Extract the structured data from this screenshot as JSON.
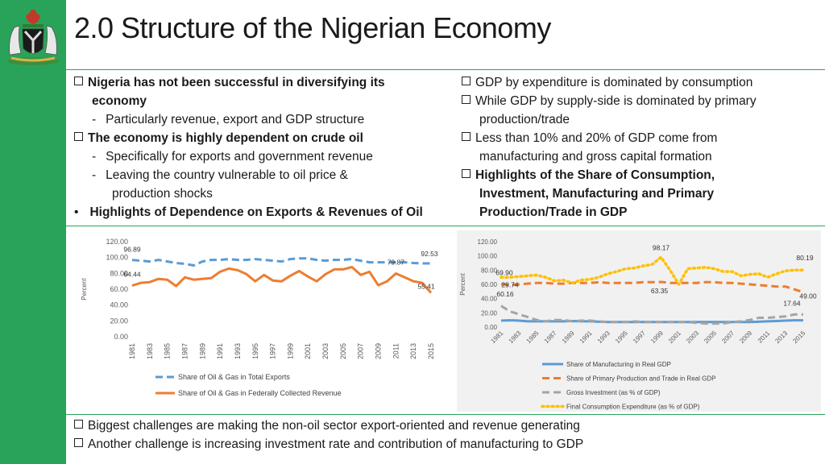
{
  "title": "2.0  Structure of the Nigerian Economy",
  "left_bullets": [
    {
      "marker": "box",
      "text": "Nigeria has not been successful in diversifying its",
      "bold": true
    },
    {
      "marker": "none",
      "text": "economy",
      "bold": true
    },
    {
      "marker": "-",
      "text": "Particularly revenue, export and GDP structure",
      "bold": false
    },
    {
      "marker": "box",
      "text": "The economy is highly dependent on crude oil",
      "bold": true
    },
    {
      "marker": "-",
      "text": "Specifically for exports and government revenue",
      "bold": false
    },
    {
      "marker": "-",
      "text": "Leaving the country vulnerable to oil price &",
      "bold": false
    },
    {
      "marker": "none",
      "text": "production shocks",
      "bold": false
    },
    {
      "marker": "•",
      "text": "Highlights of Dependence on Exports & Revenues of Oil",
      "bold": true
    }
  ],
  "right_bullets": [
    {
      "marker": "box",
      "text": "GDP by expenditure is dominated by consumption",
      "bold": false
    },
    {
      "marker": "box",
      "text": "While GDP by supply-side is dominated by primary",
      "bold": false
    },
    {
      "marker": "none",
      "text": "production/trade",
      "bold": false
    },
    {
      "marker": "box",
      "text": "Less than 10% and 20% of GDP come from",
      "bold": false
    },
    {
      "marker": "none",
      "text": "manufacturing and gross capital formation",
      "bold": false
    },
    {
      "marker": "box",
      "text": "Highlights of the Share of Consumption,",
      "bold": true
    },
    {
      "marker": "none",
      "text": "Investment, Manufacturing and Primary",
      "bold": true
    },
    {
      "marker": "none",
      "text": "Production/Trade in GDP",
      "bold": true
    }
  ],
  "bottom_bullets": [
    "Biggest challenges are making the non-oil sector export-oriented and revenue generating",
    "Another challenge is increasing investment rate and contribution of manufacturing to GDP"
  ],
  "colors": {
    "green": "#29a35a",
    "blue": "#5b9bd5",
    "orange": "#ed7d31",
    "gray": "#a5a5a5",
    "yellow": "#ffc000"
  },
  "chart_data": [
    {
      "type": "line",
      "ylabel": "Percent",
      "ylim": [
        0,
        120
      ],
      "yticks": [
        "0.00",
        "20.00",
        "40.00",
        "60.00",
        "80.00",
        "100.00",
        "120.00"
      ],
      "x": [
        1981,
        1982,
        1983,
        1984,
        1985,
        1986,
        1987,
        1988,
        1989,
        1990,
        1991,
        1992,
        1993,
        1994,
        1995,
        1996,
        1997,
        1998,
        1999,
        2000,
        2001,
        2002,
        2003,
        2004,
        2005,
        2006,
        2007,
        2008,
        2009,
        2010,
        2011,
        2012,
        2013,
        2014,
        2015
      ],
      "xticks": [
        "1981",
        "1983",
        "1985",
        "1987",
        "1989",
        "1991",
        "1993",
        "1995",
        "1997",
        "1999",
        "2001",
        "2003",
        "2005",
        "2007",
        "2009",
        "2011",
        "2013",
        "2015"
      ],
      "series": [
        {
          "name": "Share of Oil & Gas in Total Exports",
          "style": "dashed",
          "color": "#5b9bd5",
          "values": [
            96.89,
            96,
            95,
            97,
            95,
            93,
            92,
            90,
            95,
            97,
            97,
            98,
            97,
            97,
            98,
            97,
            96,
            95,
            98,
            99,
            99,
            97,
            96,
            97,
            97,
            98,
            96,
            94,
            94,
            94,
            94,
            94,
            93,
            92.5,
            92.53
          ]
        },
        {
          "name": "Share of Oil & Gas in Federally Collected Revenue",
          "style": "solid",
          "color": "#ed7d31",
          "values": [
            64.44,
            68,
            69,
            73,
            72,
            64,
            75,
            72,
            73,
            74,
            82,
            86,
            84,
            79,
            70,
            78,
            71,
            70,
            77,
            83,
            76,
            70,
            79,
            85,
            85,
            88,
            78,
            82,
            65,
            70,
            79.87,
            75,
            70,
            68,
            55.41
          ]
        }
      ],
      "labels": [
        "96.89",
        "92.53",
        "64.44",
        "79.87",
        "55.41"
      ]
    },
    {
      "type": "line",
      "ylabel": "Percent",
      "ylim": [
        0,
        120
      ],
      "yticks": [
        "0.00",
        "20.00",
        "40.00",
        "60.00",
        "80.00",
        "100.00",
        "120.00"
      ],
      "x": [
        1981,
        1982,
        1983,
        1984,
        1985,
        1986,
        1987,
        1988,
        1989,
        1990,
        1991,
        1992,
        1993,
        1994,
        1995,
        1996,
        1997,
        1998,
        1999,
        2000,
        2001,
        2002,
        2003,
        2004,
        2005,
        2006,
        2007,
        2008,
        2009,
        2010,
        2011,
        2012,
        2013,
        2014,
        2015
      ],
      "xticks": [
        "1981",
        "1983",
        "1985",
        "1987",
        "1989",
        "1991",
        "1993",
        "1995",
        "1997",
        "1999",
        "2001",
        "2003",
        "2005",
        "2007",
        "2009",
        "2011",
        "2013",
        "2015"
      ],
      "series": [
        {
          "name": "Share of Manufacturing in Real GDP",
          "style": "solid",
          "color": "#5b9bd5",
          "values": [
            9,
            9.5,
            9,
            8,
            8,
            8,
            8,
            8,
            8.5,
            8,
            8,
            7.5,
            7,
            7,
            7,
            7,
            7,
            7,
            7,
            7,
            7,
            7,
            7,
            7,
            7,
            7,
            7,
            7,
            7,
            7.5,
            8,
            8.5,
            9,
            9.5,
            9.5
          ]
        },
        {
          "name": "Share of Primary Production and Trade in Real GDP",
          "style": "dashed",
          "color": "#ed7d31",
          "values": [
            60.16,
            59,
            60,
            61,
            62,
            62,
            61,
            61,
            62,
            62,
            62,
            63,
            62,
            62,
            62,
            62,
            63,
            63,
            63.35,
            62,
            62,
            62,
            62,
            63,
            63,
            62,
            62,
            61,
            60,
            59,
            58,
            57,
            57,
            53,
            49
          ]
        },
        {
          "name": "Gross Investment (as % of GDP)",
          "style": "dashed",
          "color": "#a5a5a5",
          "values": [
            29.74,
            22,
            18,
            14,
            10,
            8,
            10,
            10,
            8,
            9,
            9,
            8,
            7,
            7,
            7,
            8,
            7,
            7,
            7,
            7,
            7,
            7,
            6,
            5,
            5,
            5,
            7,
            8,
            10,
            13,
            13,
            14,
            15,
            17.64,
            17.64
          ]
        },
        {
          "name": "Final Consumption Expenditure (as % of GDP)",
          "style": "dotted",
          "color": "#ffc000",
          "values": [
            69.9,
            70,
            71,
            72,
            73,
            70,
            65,
            66,
            62,
            66,
            67,
            70,
            75,
            78,
            82,
            83,
            86,
            88,
            98.17,
            80,
            60,
            82,
            83,
            84,
            82,
            78,
            78,
            72,
            74,
            75,
            70,
            75,
            79,
            80,
            80.19
          ]
        }
      ],
      "labels": [
        "98.17",
        "80.19",
        "69.90",
        "60.16",
        "63.35",
        "49.00",
        "29.74",
        "17.64"
      ]
    }
  ]
}
